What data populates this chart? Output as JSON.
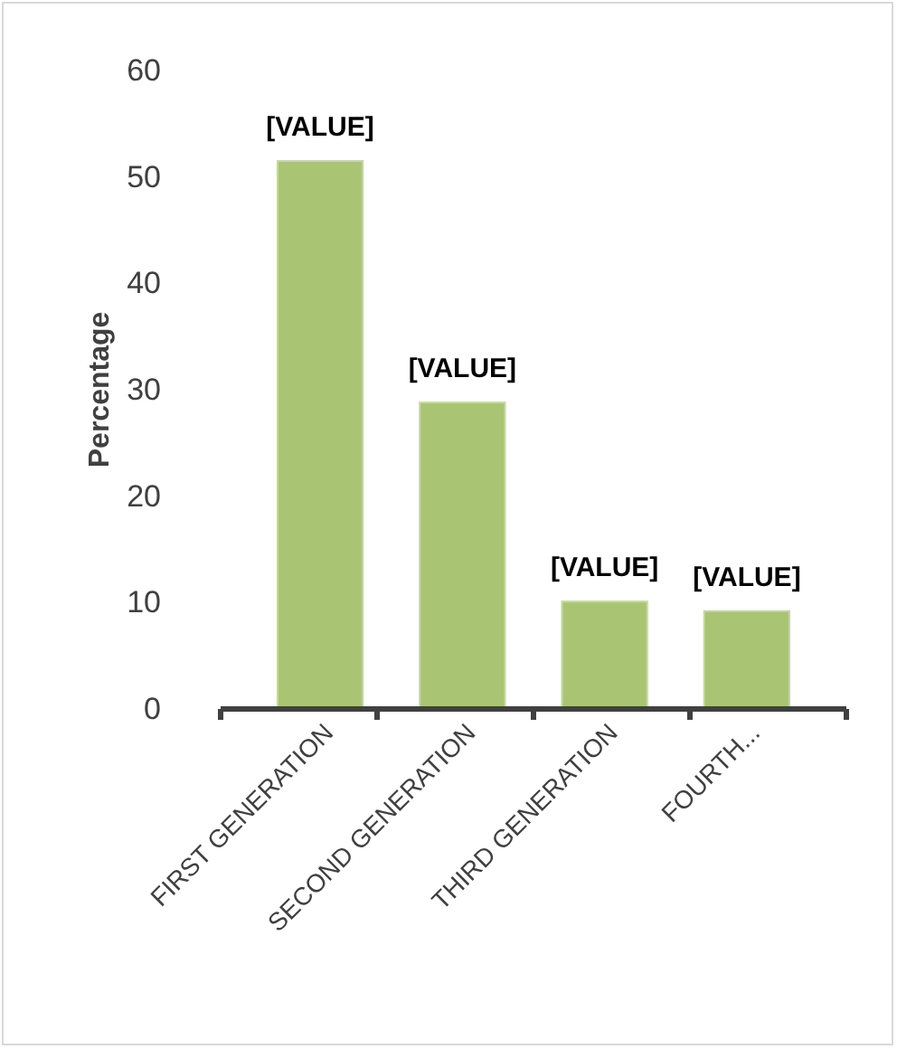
{
  "chart_data": {
    "type": "bar",
    "ylabel": "Percentage",
    "categories": [
      "FIRST GENERATION",
      "SECOND GENERATION",
      "THIRD GENERATION",
      "FOURTH..."
    ],
    "values": [
      51.5,
      28.8,
      10.1,
      9.2
    ],
    "value_labels": [
      "[VALUE]",
      "[VALUE]",
      "[VALUE]",
      "[VALUE]"
    ],
    "color": "#a9c574",
    "ylim": [
      0,
      60
    ],
    "yticks": [
      0,
      10,
      20,
      30,
      40,
      50,
      60
    ],
    "grid": false
  }
}
